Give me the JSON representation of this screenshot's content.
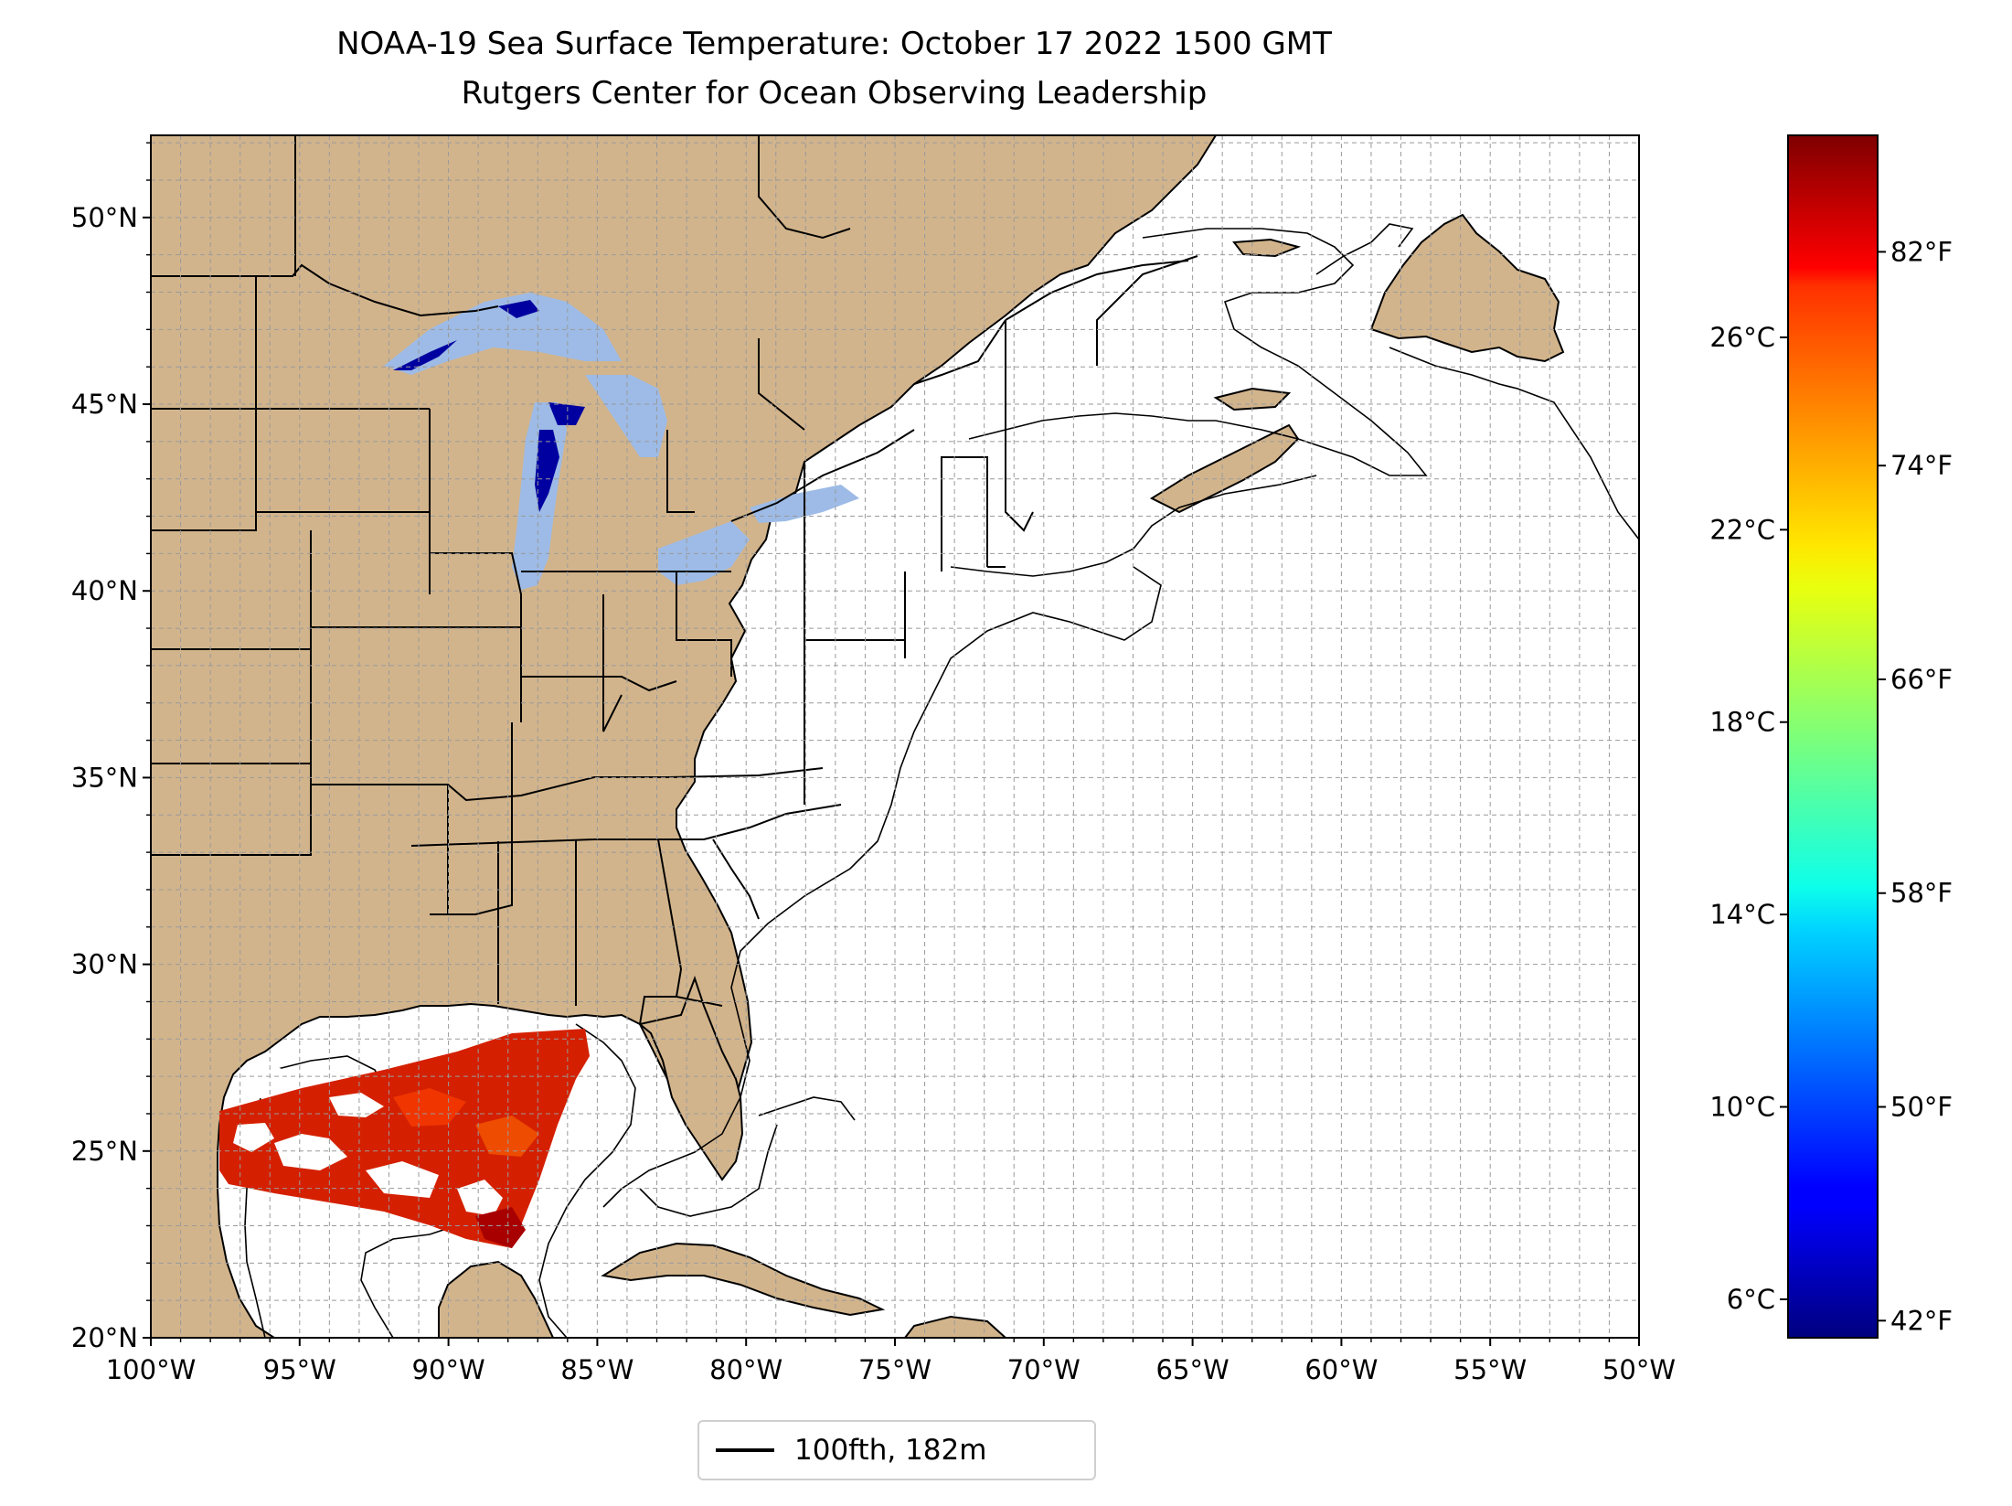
{
  "title": "NOAA-19 Sea Surface Temperature: October 17 2022 1500 GMT",
  "subtitle": "Rutgers Center for Ocean Observing Leadership",
  "map": {
    "lon_range": [
      -100,
      -50
    ],
    "lat_range": [
      20,
      52.2
    ],
    "lon_ticks": [
      "100°W",
      "95°W",
      "90°W",
      "85°W",
      "80°W",
      "75°W",
      "70°W",
      "65°W",
      "60°W",
      "55°W",
      "50°W"
    ],
    "lat_ticks": [
      "20°N",
      "25°N",
      "30°N",
      "35°N",
      "40°N",
      "45°N",
      "50°N"
    ],
    "gridlines": "dashed, 1° spacing",
    "land_color": "#d2b48c",
    "lake_color": "#9dbbe6",
    "ocean_color": "#ffffff"
  },
  "colorbar": {
    "colormap": "jet",
    "celsius_ticks": [
      "6°C",
      "10°C",
      "14°C",
      "18°C",
      "22°C",
      "26°C"
    ],
    "fahrenheit_ticks": [
      "42°F",
      "50°F",
      "58°F",
      "66°F",
      "74°F",
      "82°F"
    ]
  },
  "legend": {
    "label": "100fth, 182m"
  }
}
